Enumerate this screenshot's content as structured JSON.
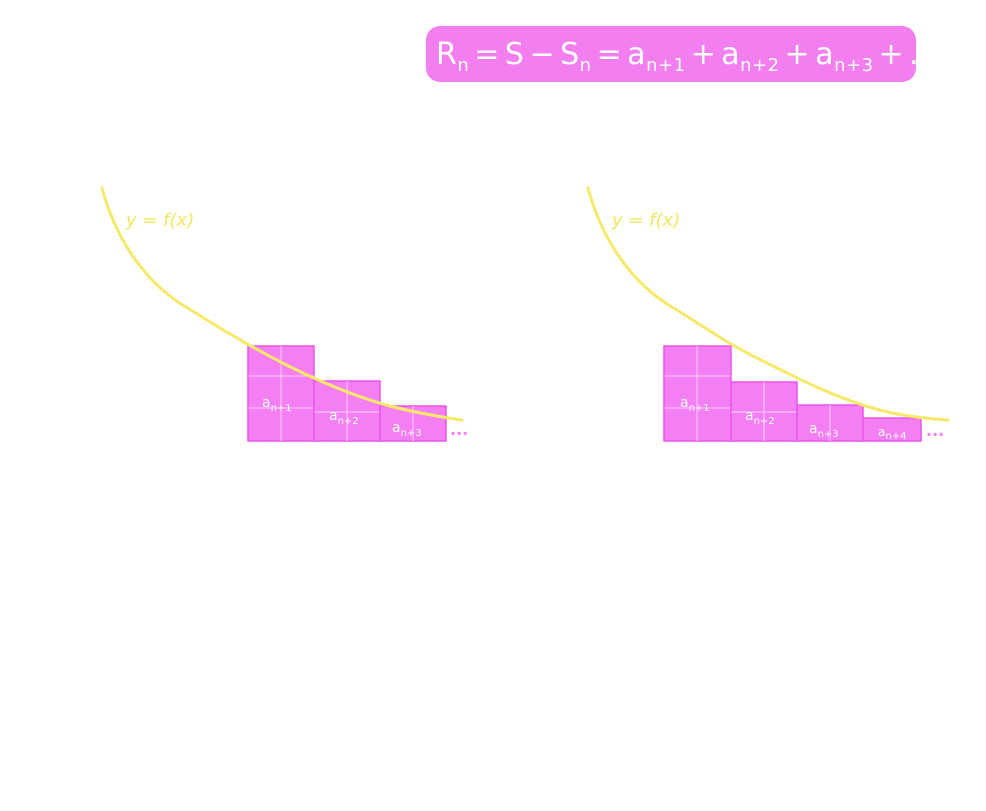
{
  "formula": {
    "r": "R",
    "r_sub": "n",
    "eq1": "=",
    "s": "S",
    "minus": "−",
    "s2": "S",
    "s2_sub": "n",
    "eq2": "=",
    "term1": "a",
    "term1_sub": "n+1",
    "plus1": "+",
    "term2": "a",
    "term2_sub": "n+2",
    "plus2": "+",
    "term3": "a",
    "term3_sub": "n+3",
    "plus3": "+",
    "ellipsis": "..."
  },
  "left_panel": {
    "curve_label": "y = f(x)",
    "bars": [
      {
        "a": "a",
        "sub": "n+1"
      },
      {
        "a": "a",
        "sub": "n+2"
      },
      {
        "a": "a",
        "sub": "n+3"
      }
    ],
    "ellipsis": "..."
  },
  "right_panel": {
    "curve_label": "y = f(x)",
    "bars": [
      {
        "a": "a",
        "sub": "n+1"
      },
      {
        "a": "a",
        "sub": "n+2"
      },
      {
        "a": "a",
        "sub": "n+3"
      },
      {
        "a": "a",
        "sub": "n+4"
      }
    ],
    "ellipsis": "..."
  },
  "colors": {
    "pink": "#f47ef4",
    "curve_yellow": "#f6e96a",
    "background": "#ffffff"
  }
}
